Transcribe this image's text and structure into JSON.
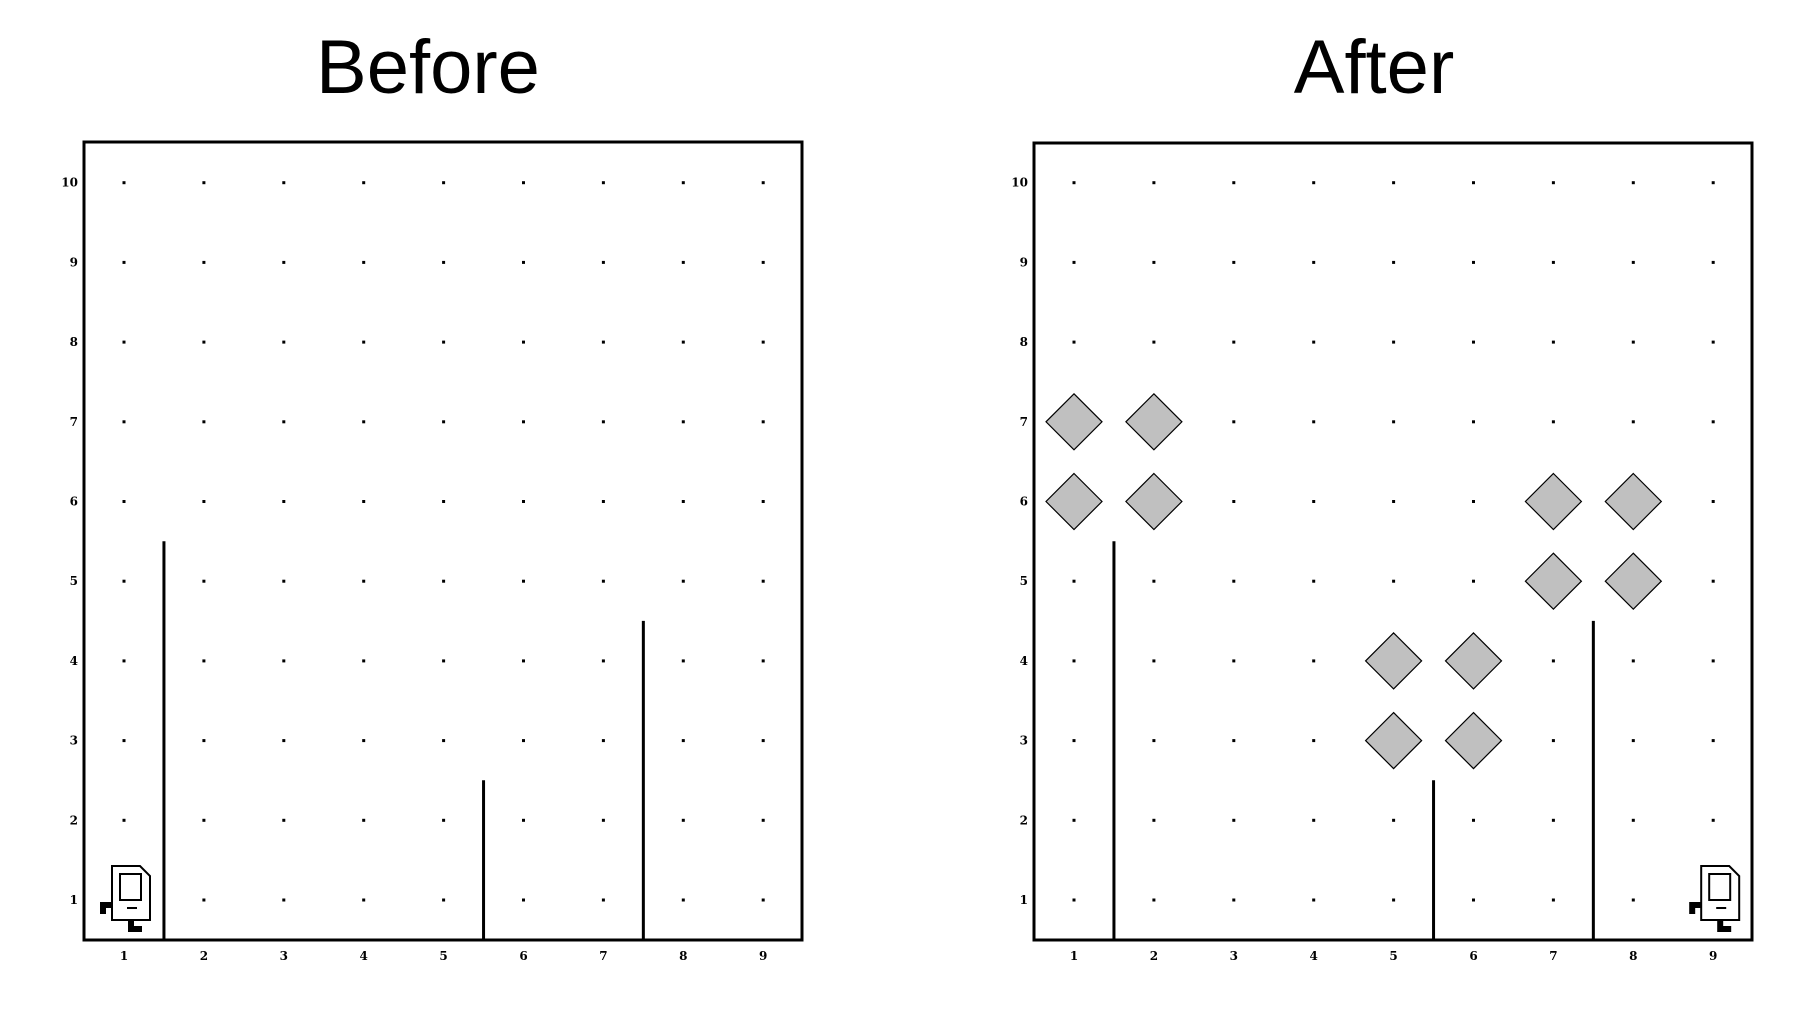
{
  "panels": [
    {
      "title": "Before",
      "robot": {
        "col": 1,
        "row": 1,
        "facing": "north"
      },
      "beepers": []
    },
    {
      "title": "After",
      "robot": {
        "col": 9,
        "row": 1,
        "facing": "north"
      },
      "beepers": [
        {
          "col": 1,
          "row": 7
        },
        {
          "col": 2,
          "row": 7
        },
        {
          "col": 1,
          "row": 6
        },
        {
          "col": 2,
          "row": 6
        },
        {
          "col": 7,
          "row": 6
        },
        {
          "col": 8,
          "row": 6
        },
        {
          "col": 7,
          "row": 5
        },
        {
          "col": 8,
          "row": 5
        },
        {
          "col": 5,
          "row": 4
        },
        {
          "col": 6,
          "row": 4
        },
        {
          "col": 5,
          "row": 3
        },
        {
          "col": 6,
          "row": 3
        }
      ]
    }
  ],
  "world": {
    "columns": [
      "1",
      "2",
      "3",
      "4",
      "5",
      "6",
      "7",
      "8",
      "9"
    ],
    "rows": [
      "1",
      "2",
      "3",
      "4",
      "5",
      "6",
      "7",
      "8",
      "9",
      "10"
    ],
    "walls": [
      {
        "between_col": 1,
        "height": 5
      },
      {
        "between_col": 5,
        "height": 2
      },
      {
        "between_col": 7,
        "height": 4
      }
    ]
  },
  "colors": {
    "beeper_fill": "#c0c0c0",
    "line": "#000000"
  }
}
